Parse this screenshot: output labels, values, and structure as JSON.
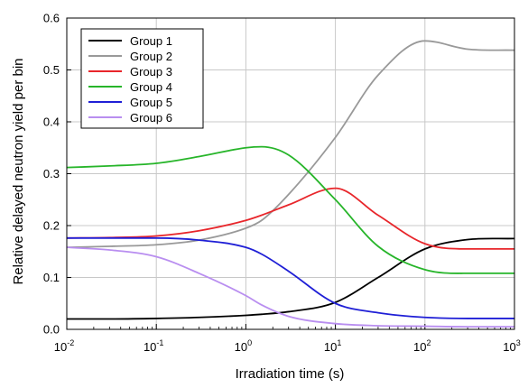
{
  "chart_data": {
    "type": "line",
    "xlabel": "Irradiation time (s)",
    "ylabel": "Relative delayed neutron yield per bin",
    "xscale": "log",
    "xlim": [
      0.01,
      1000
    ],
    "ylim": [
      0,
      0.6
    ],
    "grid": true,
    "legend_position": "top-left",
    "x_ticks": [
      {
        "base": "10",
        "exp": "-2"
      },
      {
        "base": "10",
        "exp": "-1"
      },
      {
        "base": "10",
        "exp": "0"
      },
      {
        "base": "10",
        "exp": "1"
      },
      {
        "base": "10",
        "exp": "2"
      },
      {
        "base": "10",
        "exp": "3"
      }
    ],
    "y_ticks": [
      "0.0",
      "0.1",
      "0.2",
      "0.3",
      "0.4",
      "0.5",
      "0.6"
    ],
    "x": [
      0.01,
      0.03,
      0.1,
      0.3,
      1,
      1.5,
      3,
      10,
      30,
      100,
      300,
      1000
    ],
    "series": [
      {
        "name": "Group 1",
        "color": "#000000",
        "values": [
          0.02,
          0.02,
          0.021,
          0.023,
          0.027,
          0.029,
          0.034,
          0.052,
          0.1,
          0.155,
          0.173,
          0.175
        ]
      },
      {
        "name": "Group 2",
        "color": "#999999",
        "values": [
          0.158,
          0.16,
          0.163,
          0.172,
          0.195,
          0.21,
          0.26,
          0.37,
          0.49,
          0.556,
          0.54,
          0.538
        ]
      },
      {
        "name": "Group 3",
        "color": "#e8262b",
        "values": [
          0.176,
          0.177,
          0.18,
          0.19,
          0.21,
          0.22,
          0.24,
          0.272,
          0.22,
          0.165,
          0.155,
          0.155
        ]
      },
      {
        "name": "Group 4",
        "color": "#27b52a",
        "values": [
          0.312,
          0.315,
          0.32,
          0.333,
          0.35,
          0.352,
          0.336,
          0.25,
          0.16,
          0.115,
          0.108,
          0.108
        ]
      },
      {
        "name": "Group 5",
        "color": "#1f1fd6",
        "values": [
          0.176,
          0.176,
          0.176,
          0.172,
          0.158,
          0.145,
          0.112,
          0.05,
          0.032,
          0.023,
          0.021,
          0.021
        ]
      },
      {
        "name": "Group 6",
        "color": "#b98ef0",
        "values": [
          0.158,
          0.153,
          0.14,
          0.108,
          0.065,
          0.047,
          0.025,
          0.011,
          0.007,
          0.006,
          0.005,
          0.005
        ]
      }
    ]
  }
}
